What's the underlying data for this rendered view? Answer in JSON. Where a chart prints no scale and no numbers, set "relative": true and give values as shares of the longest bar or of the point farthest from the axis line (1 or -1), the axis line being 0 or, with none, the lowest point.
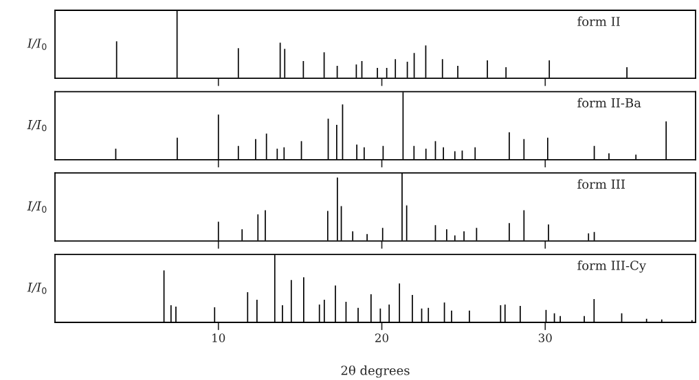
{
  "chart_data": [
    {
      "type": "bar",
      "relative": true,
      "ylabel": "I/I$_{0}$",
      "annotations": [
        "form II"
      ],
      "xlim": [
        0,
        39.2
      ],
      "xticks": [
        {
          "value": 10,
          "label": null
        },
        {
          "value": 20,
          "label": null
        },
        {
          "value": 30,
          "label": null
        }
      ],
      "tick_labels": false,
      "color": "#000000",
      "x": [
        3.77,
        7.47,
        11.22,
        13.78,
        14.06,
        15.2,
        16.47,
        17.27,
        18.44,
        18.78,
        19.73,
        20.3,
        20.83,
        21.56,
        21.98,
        22.69,
        23.71,
        24.65,
        26.46,
        27.6,
        30.25,
        35.0
      ],
      "values": [
        0.55,
        1.0,
        0.45,
        0.53,
        0.44,
        0.26,
        0.39,
        0.19,
        0.21,
        0.26,
        0.16,
        0.16,
        0.29,
        0.25,
        0.38,
        0.49,
        0.29,
        0.19,
        0.27,
        0.17,
        0.27,
        0.17
      ]
    },
    {
      "type": "bar",
      "relative": true,
      "ylabel": "I/I$_{0}$",
      "annotations": [
        "form II-Ba"
      ],
      "xlim": [
        0,
        39.2
      ],
      "xticks": [
        {
          "value": 10,
          "label": null
        },
        {
          "value": 20,
          "label": null
        },
        {
          "value": 30,
          "label": null
        }
      ],
      "tick_labels": false,
      "color": "#000000",
      "x": [
        3.72,
        7.48,
        10.0,
        11.22,
        12.28,
        12.94,
        13.6,
        14.02,
        15.08,
        16.72,
        17.24,
        17.6,
        18.47,
        18.92,
        20.08,
        21.3,
        21.97,
        22.7,
        23.28,
        23.77,
        24.47,
        24.92,
        25.71,
        27.8,
        28.7,
        30.15,
        33.0,
        33.9,
        35.55,
        37.4
      ],
      "values": [
        0.17,
        0.33,
        0.67,
        0.21,
        0.31,
        0.39,
        0.17,
        0.19,
        0.28,
        0.61,
        0.52,
        0.82,
        0.23,
        0.19,
        0.21,
        1.0,
        0.21,
        0.17,
        0.28,
        0.19,
        0.13,
        0.14,
        0.19,
        0.41,
        0.31,
        0.33,
        0.21,
        0.1,
        0.08,
        0.57
      ]
    },
    {
      "type": "bar",
      "relative": true,
      "ylabel": "I/I$_{0}$",
      "annotations": [
        "form III"
      ],
      "xlim": [
        0,
        39.2
      ],
      "xticks": [
        {
          "value": 10,
          "label": null
        },
        {
          "value": 20,
          "label": null
        },
        {
          "value": 30,
          "label": null
        }
      ],
      "tick_labels": false,
      "color": "#000000",
      "x": [
        10.0,
        11.45,
        12.42,
        12.87,
        16.69,
        17.28,
        17.52,
        18.22,
        19.1,
        20.05,
        21.24,
        21.52,
        23.28,
        23.97,
        24.47,
        25.03,
        25.8,
        27.8,
        28.7,
        30.2,
        32.65,
        33.0
      ],
      "values": [
        0.29,
        0.18,
        0.4,
        0.46,
        0.45,
        0.94,
        0.52,
        0.15,
        0.11,
        0.2,
        1.0,
        0.53,
        0.24,
        0.18,
        0.09,
        0.15,
        0.2,
        0.27,
        0.46,
        0.25,
        0.12,
        0.14
      ]
    },
    {
      "type": "bar",
      "relative": true,
      "ylabel": "I/I$_{0}$",
      "xlabel": "2θ degrees",
      "annotations": [
        "form III-Cy"
      ],
      "xlim": [
        0,
        39.2
      ],
      "xticks": [
        10,
        20,
        30
      ],
      "tick_labels": "x",
      "color": "#000000",
      "x": [
        6.67,
        7.1,
        7.4,
        9.77,
        11.79,
        12.36,
        13.45,
        13.92,
        14.46,
        15.22,
        16.18,
        16.48,
        17.16,
        17.81,
        18.55,
        19.34,
        19.91,
        20.45,
        21.08,
        21.87,
        22.44,
        22.85,
        23.83,
        24.27,
        25.36,
        27.27,
        27.54,
        28.47,
        30.05,
        30.56,
        30.92,
        32.39,
        32.99,
        34.68,
        36.2,
        37.13,
        38.98
      ],
      "values": [
        0.77,
        0.26,
        0.24,
        0.23,
        0.45,
        0.34,
        1.0,
        0.26,
        0.63,
        0.67,
        0.27,
        0.34,
        0.55,
        0.31,
        0.22,
        0.42,
        0.21,
        0.27,
        0.58,
        0.41,
        0.21,
        0.22,
        0.3,
        0.18,
        0.18,
        0.26,
        0.27,
        0.25,
        0.19,
        0.14,
        0.1,
        0.1,
        0.35,
        0.14,
        0.06,
        0.05,
        0.04
      ]
    }
  ]
}
